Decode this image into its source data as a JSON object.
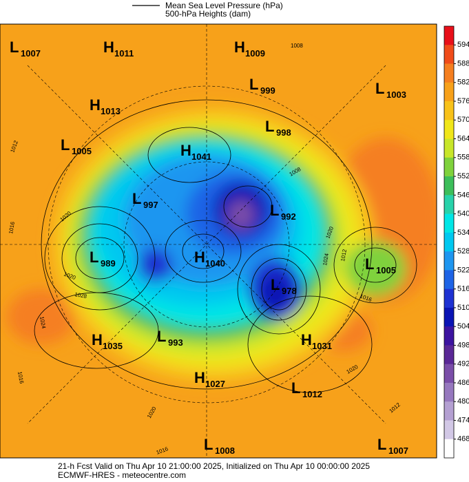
{
  "legend": {
    "lines": [
      "Mean Sea Level Pressure (hPa)",
      "500-hPa Heights (dam)"
    ]
  },
  "colorbar": {
    "ticks": [
      594,
      588,
      582,
      576,
      570,
      564,
      558,
      552,
      546,
      540,
      534,
      528,
      522,
      516,
      510,
      504,
      498,
      492,
      486,
      480,
      474,
      468
    ],
    "colors": [
      "#e8101a",
      "#f04c1a",
      "#f57f20",
      "#f7a11a",
      "#f8c21a",
      "#f0e61a",
      "#c8e62a",
      "#7fd23c",
      "#3cbe5a",
      "#28d2aa",
      "#00e6e6",
      "#00c8f0",
      "#1e96f0",
      "#1e64e6",
      "#1e32d2",
      "#0a14b4",
      "#3c14a0",
      "#5a2896",
      "#7a4ea8",
      "#9678be",
      "#b4a0d2",
      "#d2c8e6",
      "#ffffff"
    ]
  },
  "pressure_centers": [
    {
      "kind": "L",
      "value": 1007
    },
    {
      "kind": "H",
      "value": 1011
    },
    {
      "kind": "H",
      "value": 1009
    },
    {
      "kind": "L",
      "value": 999
    },
    {
      "kind": "L",
      "value": 1003
    },
    {
      "kind": "H",
      "value": 1013
    },
    {
      "kind": "L",
      "value": 998
    },
    {
      "kind": "L",
      "value": 1005
    },
    {
      "kind": "H",
      "value": 1041
    },
    {
      "kind": "L",
      "value": 997
    },
    {
      "kind": "L",
      "value": 992
    },
    {
      "kind": "L",
      "value": 989
    },
    {
      "kind": "H",
      "value": 1040
    },
    {
      "kind": "L",
      "value": 1005
    },
    {
      "kind": "L",
      "value": 978
    },
    {
      "kind": "H",
      "value": 1035
    },
    {
      "kind": "L",
      "value": 993
    },
    {
      "kind": "H",
      "value": 1031
    },
    {
      "kind": "H",
      "value": 1027
    },
    {
      "kind": "L",
      "value": 1012
    },
    {
      "kind": "L",
      "value": 1008
    },
    {
      "kind": "L",
      "value": 1007
    }
  ],
  "contour_labels": [
    1008,
    1012,
    1016,
    1020,
    1020,
    1028,
    1024,
    1016,
    1008,
    1020,
    1024,
    1016,
    1020,
    1012,
    1020,
    1016,
    1012
  ],
  "footer": {
    "lines": [
      "21-h Fcst Valid on Thu Apr 10 21:00:00 2025, Initialized on Thu Apr 10 00:00:00 2025",
      "ECMWF-HRES - meteocentre.com"
    ]
  }
}
